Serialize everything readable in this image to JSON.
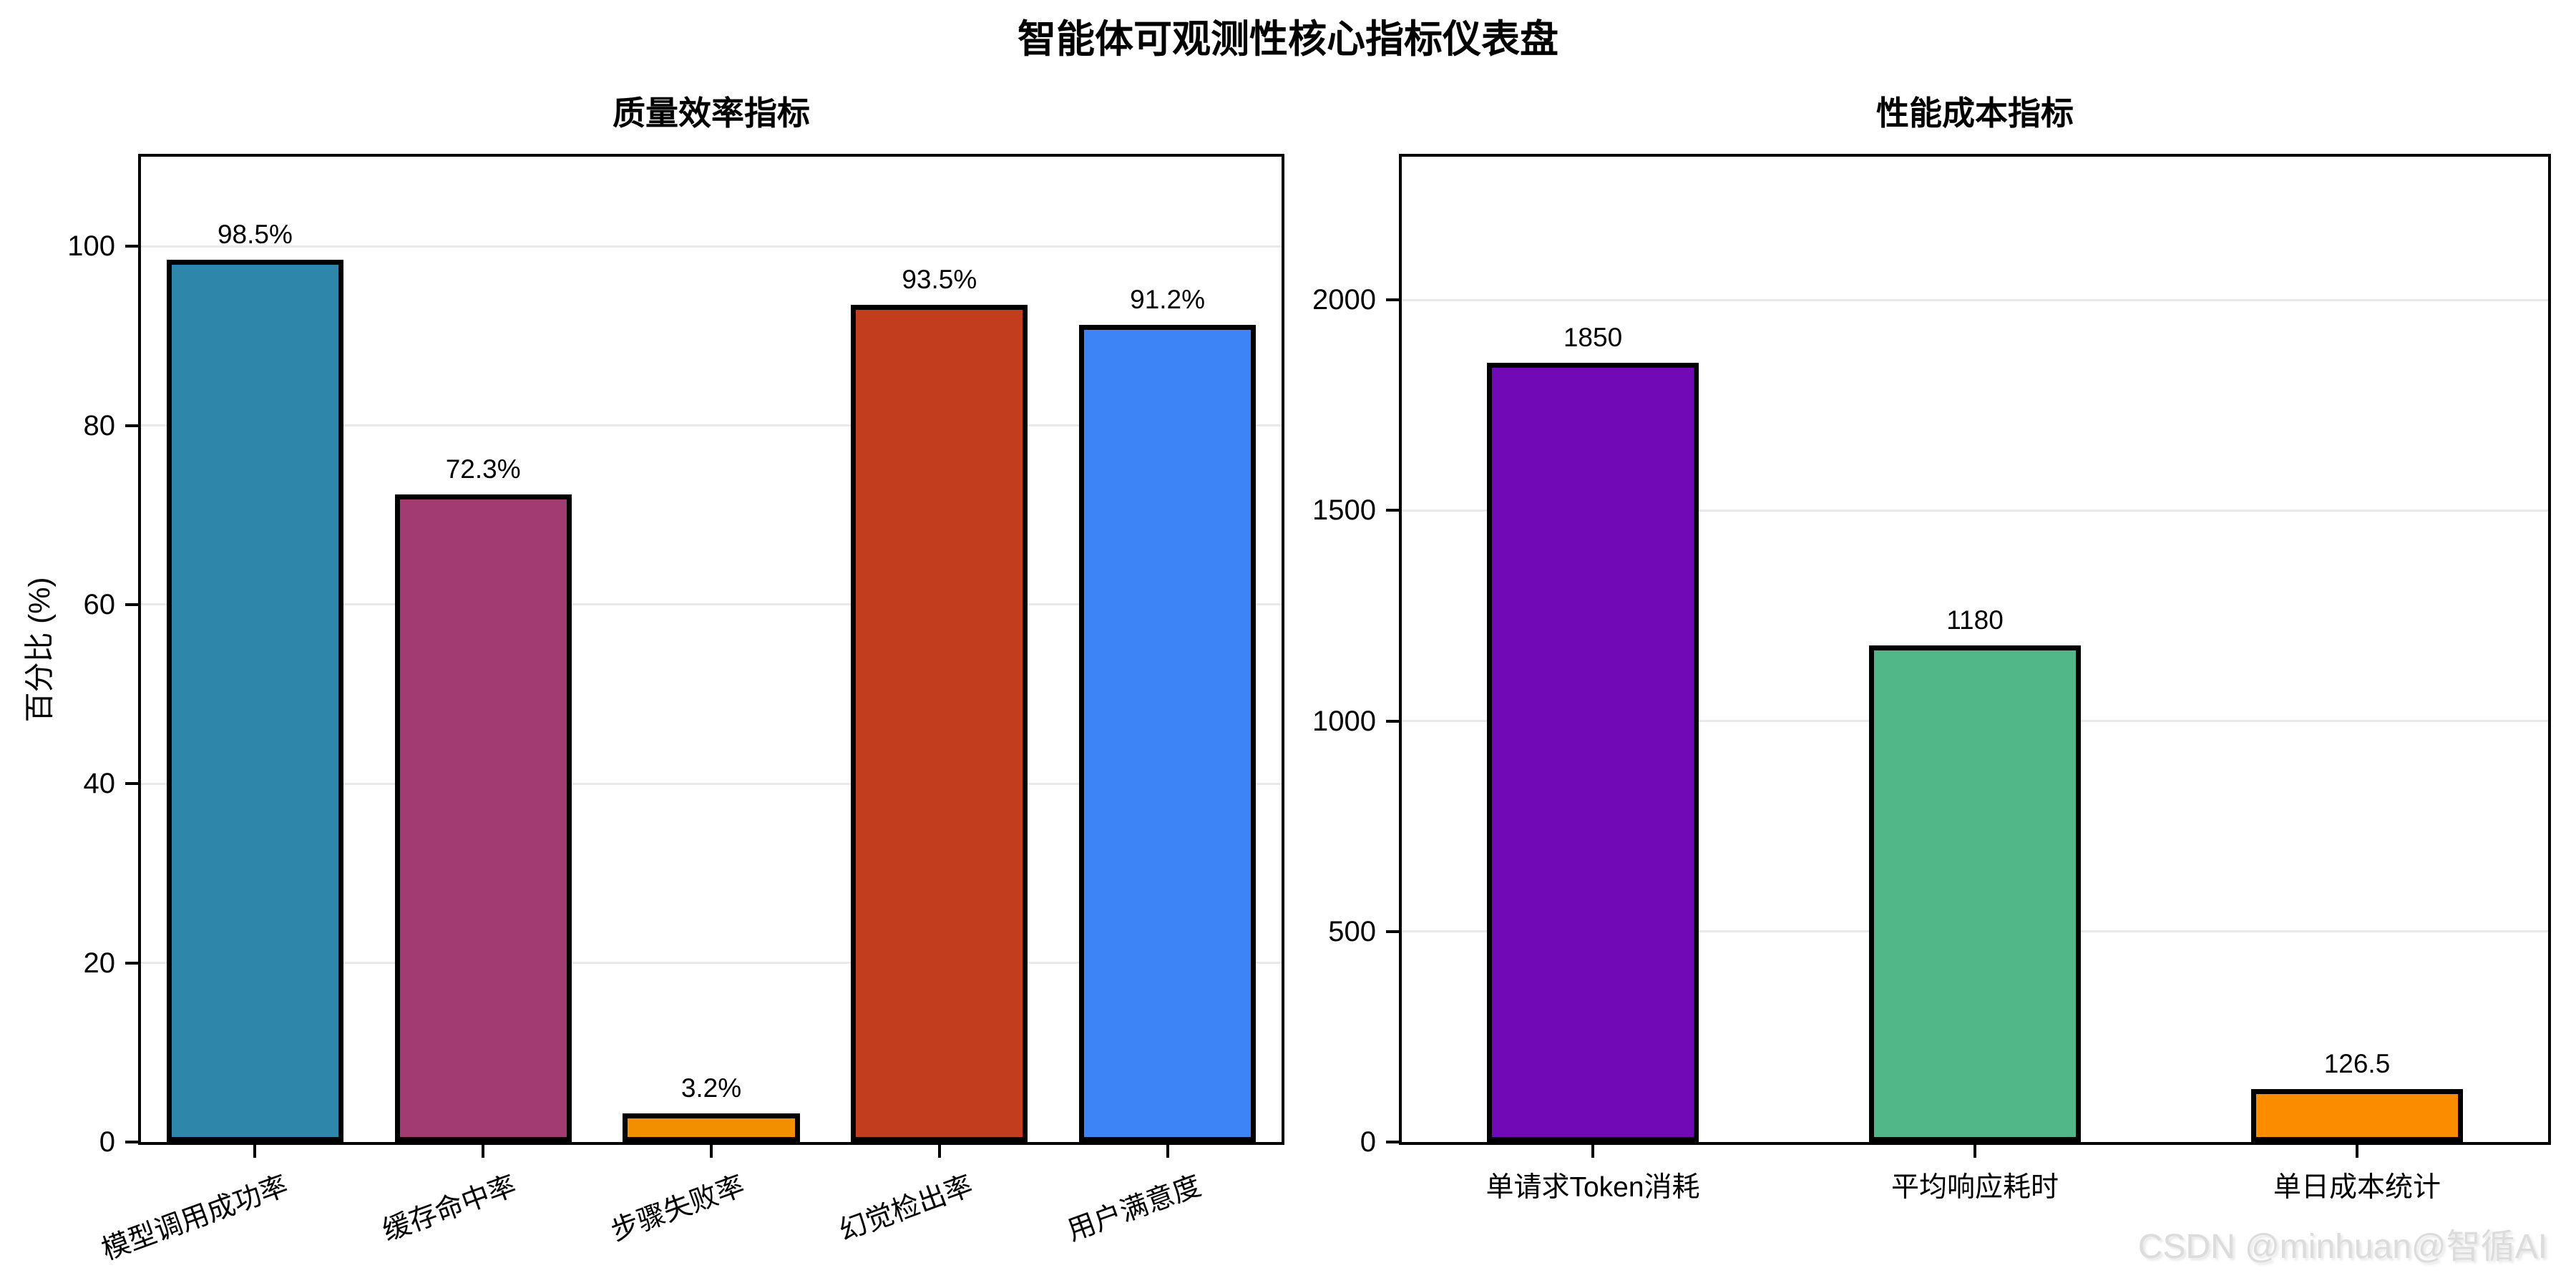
{
  "figure": {
    "title": "智能体可观测性核心指标仪表盘",
    "watermark": "CSDN @minhuan@智循AI"
  },
  "chart_data": [
    {
      "type": "bar",
      "title": "质量效率指标",
      "ylabel": "百分比 (%)",
      "categories": [
        "模型调用成功率",
        "缓存命中率",
        "步骤失败率",
        "幻觉检出率",
        "用户满意度"
      ],
      "values": [
        98.5,
        72.3,
        3.2,
        93.5,
        91.2
      ],
      "value_labels": [
        "98.5%",
        "72.3%",
        "3.2%",
        "93.5%",
        "91.2%"
      ],
      "bar_colors": [
        "#2E86AB",
        "#A23B72",
        "#F18F01",
        "#C23C1E",
        "#3D85F6"
      ],
      "ylim": [
        0,
        110
      ],
      "yticks": [
        0,
        20,
        40,
        60,
        80,
        100
      ],
      "grid": true,
      "legend": "none",
      "xtick_label_rotation_deg": 20
    },
    {
      "type": "bar",
      "title": "性能成本指标",
      "ylabel": "",
      "categories": [
        "单请求Token消耗",
        "平均响应耗时",
        "单日成本统计"
      ],
      "values": [
        1850,
        1180,
        126.5
      ],
      "value_labels": [
        "1850",
        "1180",
        "126.5"
      ],
      "bar_colors": [
        "#7209B7",
        "#52B788",
        "#FB8C00"
      ],
      "ylim": [
        0,
        2340
      ],
      "yticks": [
        0,
        500,
        1000,
        1500,
        2000
      ],
      "grid": true,
      "legend": "none",
      "xtick_label_rotation_deg": 0
    }
  ]
}
